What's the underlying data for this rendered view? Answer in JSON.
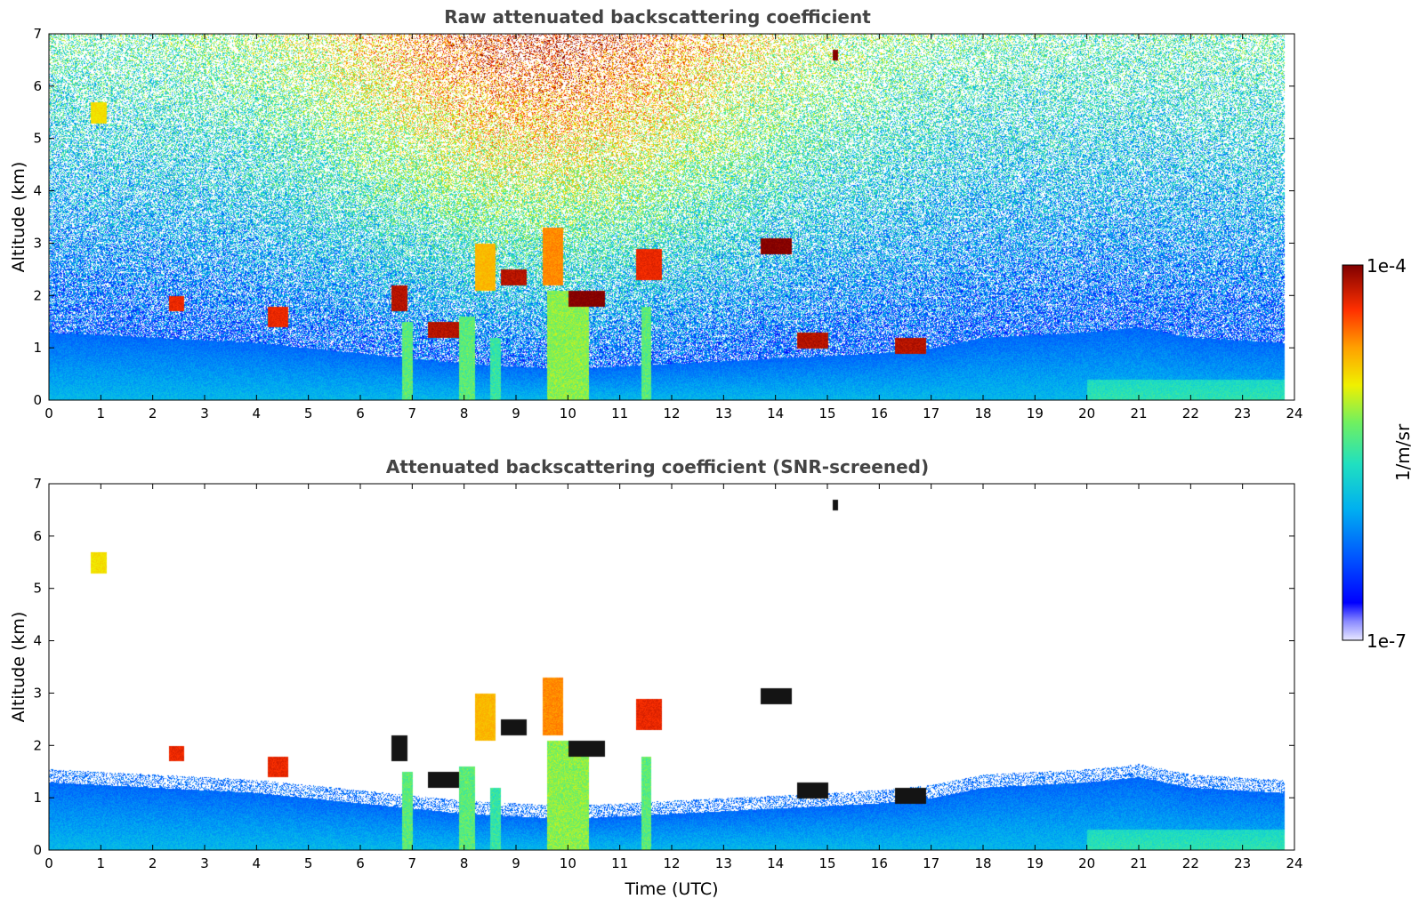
{
  "chart_data": [
    {
      "type": "heatmap",
      "title": "Raw attenuated backscattering coefficient",
      "xlabel": "",
      "ylabel": "Altitude (km)",
      "xlim": [
        0,
        24
      ],
      "ylim": [
        0,
        7
      ],
      "x_ticks": [
        "0",
        "1",
        "2",
        "3",
        "4",
        "5",
        "6",
        "7",
        "8",
        "9",
        "10",
        "11",
        "12",
        "13",
        "14",
        "15",
        "16",
        "17",
        "18",
        "19",
        "20",
        "21",
        "22",
        "23",
        "24"
      ],
      "y_ticks": [
        "0",
        "1",
        "2",
        "3",
        "4",
        "5",
        "6",
        "7"
      ],
      "data_end_time": 23.8,
      "boundary_layer_top_km": [
        [
          0,
          1.3
        ],
        [
          2,
          1.2
        ],
        [
          4,
          1.1
        ],
        [
          6,
          0.9
        ],
        [
          8,
          0.7
        ],
        [
          10,
          0.6
        ],
        [
          12,
          0.7
        ],
        [
          14,
          0.8
        ],
        [
          16,
          0.9
        ],
        [
          17,
          1.0
        ],
        [
          18,
          1.2
        ],
        [
          20,
          1.3
        ],
        [
          21,
          1.4
        ],
        [
          22,
          1.2
        ],
        [
          23.8,
          1.1
        ]
      ],
      "features": [
        {
          "t0": 0.8,
          "t1": 1.1,
          "z0": 5.3,
          "z1": 5.7,
          "level": 0.7
        },
        {
          "t0": 2.3,
          "t1": 2.6,
          "z0": 1.7,
          "z1": 2.0,
          "level": 0.9
        },
        {
          "t0": 4.2,
          "t1": 4.6,
          "z0": 1.4,
          "z1": 1.8,
          "level": 0.9
        },
        {
          "t0": 6.6,
          "t1": 6.9,
          "z0": 1.7,
          "z1": 2.2,
          "level": 0.95
        },
        {
          "t0": 7.3,
          "t1": 7.9,
          "z0": 1.2,
          "z1": 1.5,
          "level": 0.95
        },
        {
          "t0": 8.2,
          "t1": 8.6,
          "z0": 2.1,
          "z1": 3.0,
          "level": 0.75
        },
        {
          "t0": 8.7,
          "t1": 9.2,
          "z0": 2.2,
          "z1": 2.5,
          "level": 0.95
        },
        {
          "t0": 9.5,
          "t1": 9.9,
          "z0": 2.2,
          "z1": 3.3,
          "level": 0.8
        },
        {
          "t0": 10.0,
          "t1": 10.7,
          "z0": 1.8,
          "z1": 2.1,
          "level": 1.0
        },
        {
          "t0": 11.3,
          "t1": 11.8,
          "z0": 2.3,
          "z1": 2.9,
          "level": 0.9
        },
        {
          "t0": 13.7,
          "t1": 14.3,
          "z0": 2.8,
          "z1": 3.1,
          "level": 1.0
        },
        {
          "t0": 14.4,
          "t1": 15.0,
          "z0": 1.0,
          "z1": 1.3,
          "level": 0.95
        },
        {
          "t0": 15.1,
          "t1": 15.2,
          "z0": 6.5,
          "z1": 6.7,
          "level": 1.0
        },
        {
          "t0": 16.3,
          "t1": 16.9,
          "z0": 0.9,
          "z1": 1.2,
          "level": 0.95
        }
      ],
      "precip_columns": [
        {
          "t0": 6.8,
          "t1": 7.0,
          "z_top": 1.5,
          "level": 0.55
        },
        {
          "t0": 7.9,
          "t1": 8.2,
          "z_top": 1.6,
          "level": 0.55
        },
        {
          "t0": 8.5,
          "t1": 8.7,
          "z_top": 1.2,
          "level": 0.5
        },
        {
          "t0": 9.6,
          "t1": 10.4,
          "z_top": 2.1,
          "level": 0.6
        },
        {
          "t0": 11.4,
          "t1": 11.6,
          "z_top": 1.8,
          "level": 0.55
        }
      ],
      "colorbar": {
        "max_label": "1e-4",
        "min_label": "1e-7",
        "unit": "1/m/sr"
      }
    },
    {
      "type": "heatmap",
      "title": "Attenuated backscattering coefficient (SNR-screened)",
      "xlabel": "Time (UTC)",
      "ylabel": "Altitude (km)",
      "xlim": [
        0,
        24
      ],
      "ylim": [
        0,
        7
      ],
      "x_ticks": [
        "0",
        "1",
        "2",
        "3",
        "4",
        "5",
        "6",
        "7",
        "8",
        "9",
        "10",
        "11",
        "12",
        "13",
        "14",
        "15",
        "16",
        "17",
        "18",
        "19",
        "20",
        "21",
        "22",
        "23",
        "24"
      ],
      "y_ticks": [
        "0",
        "1",
        "2",
        "3",
        "4",
        "5",
        "6",
        "7"
      ]
    }
  ],
  "colorbar": {
    "max_label": "1e-4",
    "min_label": "1e-7",
    "unit": "1/m/sr"
  }
}
